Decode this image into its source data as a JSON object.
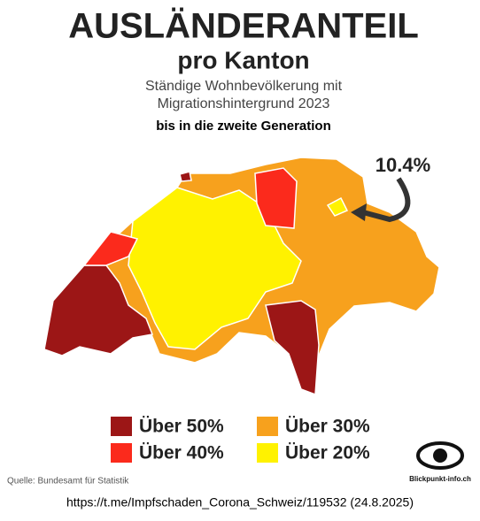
{
  "header": {
    "title": "AUSLÄNDERANTEIL",
    "subtitle": "pro Kanton",
    "description": [
      "Ständige Wohnbevölkerung mit",
      "Migrationshintergrund 2023"
    ],
    "note": "bis in die zweite Generation"
  },
  "annotation": "10.4%",
  "legend": [
    {
      "label": "Über 50%",
      "color": "#9c1616"
    },
    {
      "label": "Über 40%",
      "color": "#fb2a1c"
    },
    {
      "label": "Über 30%",
      "color": "#f7a11d"
    },
    {
      "label": "Über 20%",
      "color": "#fff200"
    }
  ],
  "source": "Quelle: Bundesamt für Statistik",
  "logo": "Blickpunkt-info.ch",
  "footer": "https://t.me/Impfschaden_Corona_Schweiz/119532 (24.8.2025)"
}
